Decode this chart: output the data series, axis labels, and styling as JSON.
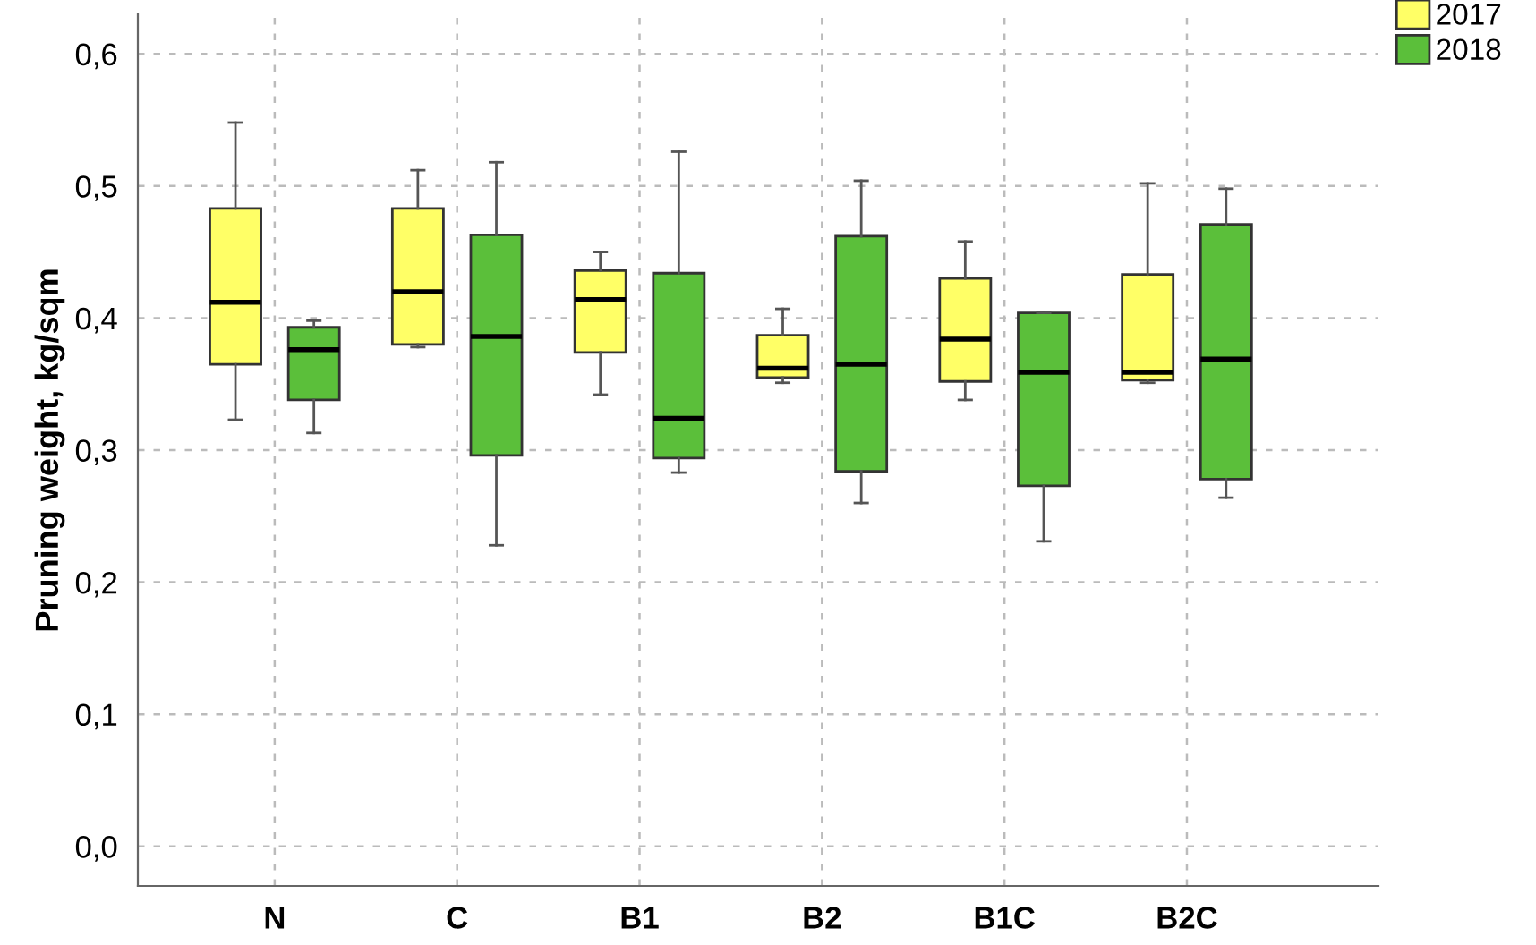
{
  "chart_data": {
    "type": "box",
    "categories": [
      "N",
      "C",
      "B1",
      "B2",
      "B1C",
      "B2C"
    ],
    "ylabel": "Pruning weight, kg/sqm",
    "ylim": [
      -0.03,
      0.63
    ],
    "yticks": [
      {
        "value": 0.0,
        "label": "0,0"
      },
      {
        "value": 0.1,
        "label": "0,1"
      },
      {
        "value": 0.2,
        "label": "0,2"
      },
      {
        "value": 0.3,
        "label": "0,3"
      },
      {
        "value": 0.4,
        "label": "0,4"
      },
      {
        "value": 0.5,
        "label": "0,5"
      },
      {
        "value": 0.6,
        "label": "0,6"
      }
    ],
    "grid": true,
    "legend": "top right",
    "series": [
      {
        "name": "2017",
        "color": "#ffff66",
        "boxes": [
          {
            "low": 0.323,
            "q1": 0.365,
            "median": 0.412,
            "q3": 0.483,
            "high": 0.548
          },
          {
            "low": 0.378,
            "q1": 0.38,
            "median": 0.42,
            "q3": 0.483,
            "high": 0.512
          },
          {
            "low": 0.342,
            "q1": 0.374,
            "median": 0.414,
            "q3": 0.436,
            "high": 0.45
          },
          {
            "low": 0.351,
            "q1": 0.355,
            "median": 0.362,
            "q3": 0.387,
            "high": 0.407
          },
          {
            "low": 0.338,
            "q1": 0.352,
            "median": 0.384,
            "q3": 0.43,
            "high": 0.458
          },
          {
            "low": 0.351,
            "q1": 0.353,
            "median": 0.359,
            "q3": 0.433,
            "high": 0.502
          }
        ]
      },
      {
        "name": "2018",
        "color": "#5bbf3a",
        "boxes": [
          {
            "low": 0.313,
            "q1": 0.338,
            "median": 0.376,
            "q3": 0.393,
            "high": 0.398
          },
          {
            "low": 0.228,
            "q1": 0.296,
            "median": 0.386,
            "q3": 0.463,
            "high": 0.518
          },
          {
            "low": 0.283,
            "q1": 0.294,
            "median": 0.324,
            "q3": 0.434,
            "high": 0.526
          },
          {
            "low": 0.26,
            "q1": 0.284,
            "median": 0.365,
            "q3": 0.462,
            "high": 0.504
          },
          {
            "low": 0.231,
            "q1": 0.273,
            "median": 0.359,
            "q3": 0.404,
            "high": 0.404
          },
          {
            "low": 0.264,
            "q1": 0.278,
            "median": 0.369,
            "q3": 0.471,
            "high": 0.498
          }
        ]
      }
    ]
  }
}
